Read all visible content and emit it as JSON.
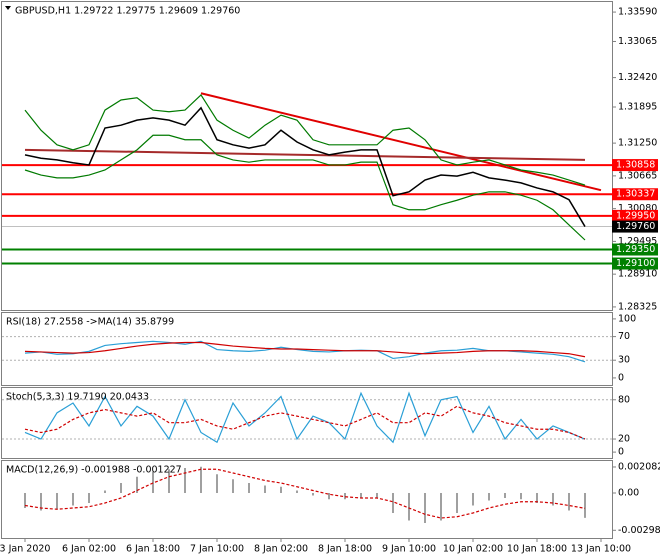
{
  "chart_data": [
    {
      "type": "line",
      "title": "GBPUSD,H1 1.29722 1.29775 1.29609 1.29760",
      "ylim": [
        1.2827,
        1.3377
      ],
      "yticks": [
        {
          "value": 1.3359,
          "label": "1.33590"
        },
        1.33065,
        {
          "value": 1.3242,
          "label": "1.32420"
        },
        1.31895,
        {
          "value": 1.3125,
          "label": "1.31250"
        },
        1.30665,
        {
          "value": 1.3008,
          "label": "1.30080"
        },
        1.29495,
        {
          "value": 1.2891,
          "label": "1.28910"
        },
        1.28325
      ],
      "series": [
        {
          "color": "#000000",
          "values": [
            1.3104,
            1.3098,
            1.3095,
            1.309,
            1.3086,
            1.3152,
            1.3157,
            1.3166,
            1.317,
            1.3166,
            1.3157,
            1.3188,
            1.3131,
            1.3122,
            1.3116,
            1.3122,
            1.3148,
            1.3127,
            1.3113,
            1.3104,
            1.3109,
            1.3113,
            1.3113,
            1.3031,
            1.3038,
            1.3059,
            1.3068,
            1.3066,
            1.3073,
            1.3063,
            1.3059,
            1.3054,
            1.3045,
            1.3038,
            1.3024,
            1.2976,
            null
          ]
        },
        {
          "color": "#007a00",
          "values": [
            1.3184,
            1.3148,
            1.3122,
            1.3113,
            1.3122,
            1.3184,
            1.3202,
            1.3206,
            1.3184,
            1.3181,
            1.3184,
            1.3211,
            1.3166,
            1.3148,
            1.3134,
            1.3157,
            1.3175,
            1.3166,
            1.3131,
            1.3122,
            1.3122,
            1.3122,
            1.3122,
            1.3148,
            1.3152,
            1.3131,
            1.3095,
            1.3086,
            1.3091,
            1.3095,
            1.3086,
            1.3077,
            1.3073,
            1.3068,
            1.3059,
            1.305,
            null
          ]
        },
        {
          "color": "#007a00",
          "values": [
            1.3077,
            1.3068,
            1.3063,
            1.3063,
            1.3068,
            1.3077,
            1.3095,
            1.3113,
            1.3139,
            1.3139,
            1.3131,
            1.3131,
            1.3104,
            1.3095,
            1.3091,
            1.3095,
            1.3095,
            1.3095,
            1.3095,
            1.3086,
            1.3086,
            1.3091,
            1.3091,
            1.3015,
            1.3006,
            1.3006,
            1.3015,
            1.3023,
            1.3032,
            1.3038,
            1.3038,
            1.3032,
            1.3023,
            1.3006,
            1.2979,
            1.2952,
            null
          ]
        }
      ],
      "trendlines": [
        {
          "color": "#e00000",
          "from": [
            11,
            1.3214
          ],
          "to": [
            36,
            1.3041
          ]
        },
        {
          "color": "#a52a2a",
          "from": [
            0,
            1.3113
          ],
          "to": [
            35,
            1.3095
          ]
        }
      ],
      "levels": [
        {
          "value": 1.30858,
          "color": "#ff0000"
        },
        {
          "value": 1.30337,
          "color": "#ff0000"
        },
        {
          "value": 1.2995,
          "label": "1.29950",
          "color": "#ff0000"
        },
        {
          "value": 1.2935,
          "label": "1.29350",
          "color": "#008000"
        },
        {
          "value": 1.291,
          "label": "1.29100",
          "color": "#008000"
        }
      ],
      "current_price": {
        "value": 1.2976,
        "label": "1.29760"
      }
    },
    {
      "type": "line",
      "title": "RSI(18) 27.2558 ->MA(14) 35.8799",
      "ylim": [
        -12,
        110
      ],
      "yticks": [
        0,
        30,
        70,
        100
      ],
      "grid_levels": [
        30,
        70
      ],
      "series": [
        {
          "color": "#2a9fd6",
          "values": [
            42,
            44,
            40,
            41,
            45,
            55,
            58,
            60,
            62,
            60,
            57,
            62,
            48,
            46,
            45,
            47,
            52,
            48,
            45,
            44,
            46,
            47,
            46,
            33,
            36,
            42,
            46,
            47,
            50,
            46,
            46,
            44,
            42,
            40,
            36,
            27.2558,
            null
          ]
        },
        {
          "color": "#d00000",
          "values": [
            45,
            44,
            43,
            42,
            43,
            46,
            50,
            54,
            57,
            59,
            60,
            60,
            57,
            54,
            52,
            50,
            49,
            49,
            48,
            47,
            46,
            46,
            46,
            44,
            42,
            41,
            42,
            43,
            45,
            46,
            46,
            46,
            45,
            43,
            41,
            35.8799,
            null
          ]
        }
      ]
    },
    {
      "type": "line",
      "title": "Stoch(5,3,3) 19.7190 20.0433",
      "ylim": [
        -9,
        98
      ],
      "yticks": [
        0,
        20,
        80
      ],
      "grid_levels": [
        20,
        80
      ],
      "series": [
        {
          "color": "#2a9fd6",
          "values": [
            30,
            20,
            60,
            75,
            40,
            85,
            40,
            70,
            55,
            20,
            80,
            30,
            15,
            75,
            40,
            60,
            85,
            20,
            55,
            45,
            20,
            90,
            40,
            15,
            90,
            25,
            80,
            85,
            30,
            70,
            20,
            50,
            20,
            40,
            30,
            19.719,
            null
          ]
        },
        {
          "color": "#d00000",
          "dash": true,
          "values": [
            35,
            30,
            35,
            50,
            60,
            65,
            60,
            55,
            60,
            45,
            45,
            50,
            40,
            35,
            45,
            55,
            60,
            55,
            50,
            45,
            40,
            50,
            60,
            45,
            45,
            60,
            55,
            70,
            60,
            55,
            45,
            40,
            35,
            35,
            30,
            20.0433,
            null
          ]
        }
      ]
    },
    {
      "type": "line",
      "title": "MACD(12,26,9) -0.001988 -0.001227",
      "ylim": [
        -0.0036,
        0.00256
      ],
      "yticks": [
        0.002082,
        {
          "value": 0,
          "label": "0.00"
        },
        -0.002983
      ],
      "categories": [
        "3 Jan 2020",
        null,
        null,
        null,
        "6 Jan 02:00",
        null,
        null,
        null,
        "6 Jan 18:00",
        null,
        null,
        null,
        "7 Jan 10:00",
        null,
        null,
        null,
        "8 Jan 02:00",
        null,
        null,
        null,
        "8 Jan 18:00",
        null,
        null,
        null,
        "9 Jan 10:00",
        null,
        null,
        null,
        "10 Jan 02:00",
        null,
        null,
        null,
        "10 Jan 18:00",
        null,
        null,
        null,
        "13 Jan 10:00"
      ],
      "series": [
        {
          "color": "#a0a0a0",
          "style": "bars",
          "values": [
            -0.0012,
            -0.0014,
            -0.0013,
            -0.001,
            -0.0008,
            0.0002,
            0.0008,
            0.0013,
            0.0017,
            0.0019,
            0.002,
            0.0021,
            0.0015,
            0.0011,
            0.0008,
            0.0006,
            0.0005,
            0.0002,
            -0.0002,
            -0.0005,
            -0.0005,
            -0.0004,
            -0.0004,
            -0.0016,
            -0.0022,
            -0.0024,
            -0.0022,
            -0.0016,
            -0.001,
            -0.0006,
            -0.0004,
            -0.0005,
            -0.0008,
            -0.001,
            -0.0014,
            -0.001988,
            null
          ]
        },
        {
          "color": "#d00000",
          "dash": true,
          "values": [
            -0.001,
            -0.0012,
            -0.0013,
            -0.0012,
            -0.0011,
            -0.0008,
            -0.0004,
            0.0002,
            0.0008,
            0.0013,
            0.0016,
            0.0019,
            0.0019,
            0.0016,
            0.0013,
            0.001,
            0.0008,
            0.0005,
            0.0002,
            -0.0001,
            -0.0003,
            -0.0004,
            -0.0004,
            -0.0007,
            -0.0012,
            -0.0017,
            -0.002,
            -0.0019,
            -0.0016,
            -0.0012,
            -0.0009,
            -0.0007,
            -0.0007,
            -0.0008,
            -0.001,
            -0.001227,
            null
          ]
        }
      ]
    }
  ]
}
